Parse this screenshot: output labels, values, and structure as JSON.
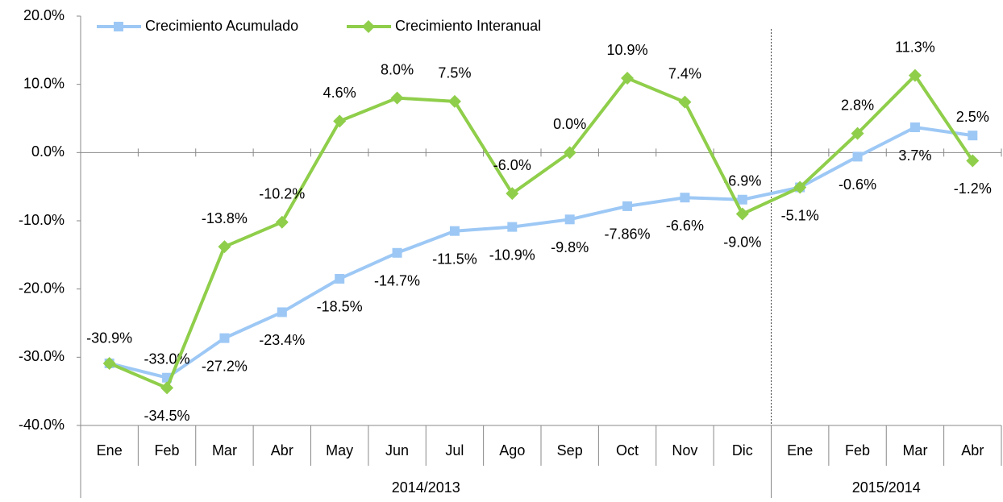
{
  "chart_data": {
    "type": "line",
    "categories": [
      "Ene",
      "Feb",
      "Mar",
      "Abr",
      "May",
      "Jun",
      "Jul",
      "Ago",
      "Sep",
      "Oct",
      "Nov",
      "Dic",
      "Ene",
      "Feb",
      "Mar",
      "Abr"
    ],
    "groups": [
      {
        "label": "2014/2013",
        "count": 12
      },
      {
        "label": "2015/2014",
        "count": 4
      }
    ],
    "series": [
      {
        "name": "Crecimiento Acumulado",
        "color": "#9dc8f5",
        "marker": "square",
        "values": [
          -30.9,
          -33.0,
          -27.2,
          -23.4,
          -18.5,
          -14.7,
          -11.5,
          -10.9,
          -9.8,
          -7.86,
          -6.6,
          -6.9,
          -5.1,
          -0.6,
          3.7,
          2.5
        ],
        "value_labels": [
          "-30.9%",
          "-33.0%",
          "-27.2%",
          "-23.4%",
          "-18.5%",
          "-14.7%",
          "-11.5%",
          "-10.9%",
          "-9.8%",
          "-7.86%",
          "-6.6%",
          "-6.9%",
          "-5.1%",
          "-0.6%",
          "3.7%",
          "2.5%"
        ]
      },
      {
        "name": "Crecimiento Interanual",
        "color": "#8fce4a",
        "marker": "diamond",
        "values": [
          -30.9,
          -34.5,
          -13.8,
          -10.2,
          4.6,
          8.0,
          7.5,
          -6.0,
          0.0,
          10.9,
          7.4,
          -9.0,
          -5.1,
          2.8,
          11.3,
          -1.2
        ],
        "value_labels": [
          null,
          "-34.5%",
          "-13.8%",
          "-10.2%",
          "4.6%",
          "8.0%",
          "7.5%",
          "-6.0%",
          "0.0%",
          "10.9%",
          "7.4%",
          "-9.0%",
          null,
          "2.8%",
          "11.3%",
          "-1.2%"
        ]
      }
    ],
    "ylim": [
      -40,
      20
    ],
    "yticks": [
      {
        "value": -40,
        "label": "-40.0%"
      },
      {
        "value": -30,
        "label": "-30.0%"
      },
      {
        "value": -20,
        "label": "-20.0%"
      },
      {
        "value": -10,
        "label": "-10.0%"
      },
      {
        "value": 0,
        "label": "0.0%"
      },
      {
        "value": 10,
        "label": "10.0%"
      },
      {
        "value": 20,
        "label": "20.0%"
      }
    ],
    "grid": false,
    "legend": "top"
  }
}
